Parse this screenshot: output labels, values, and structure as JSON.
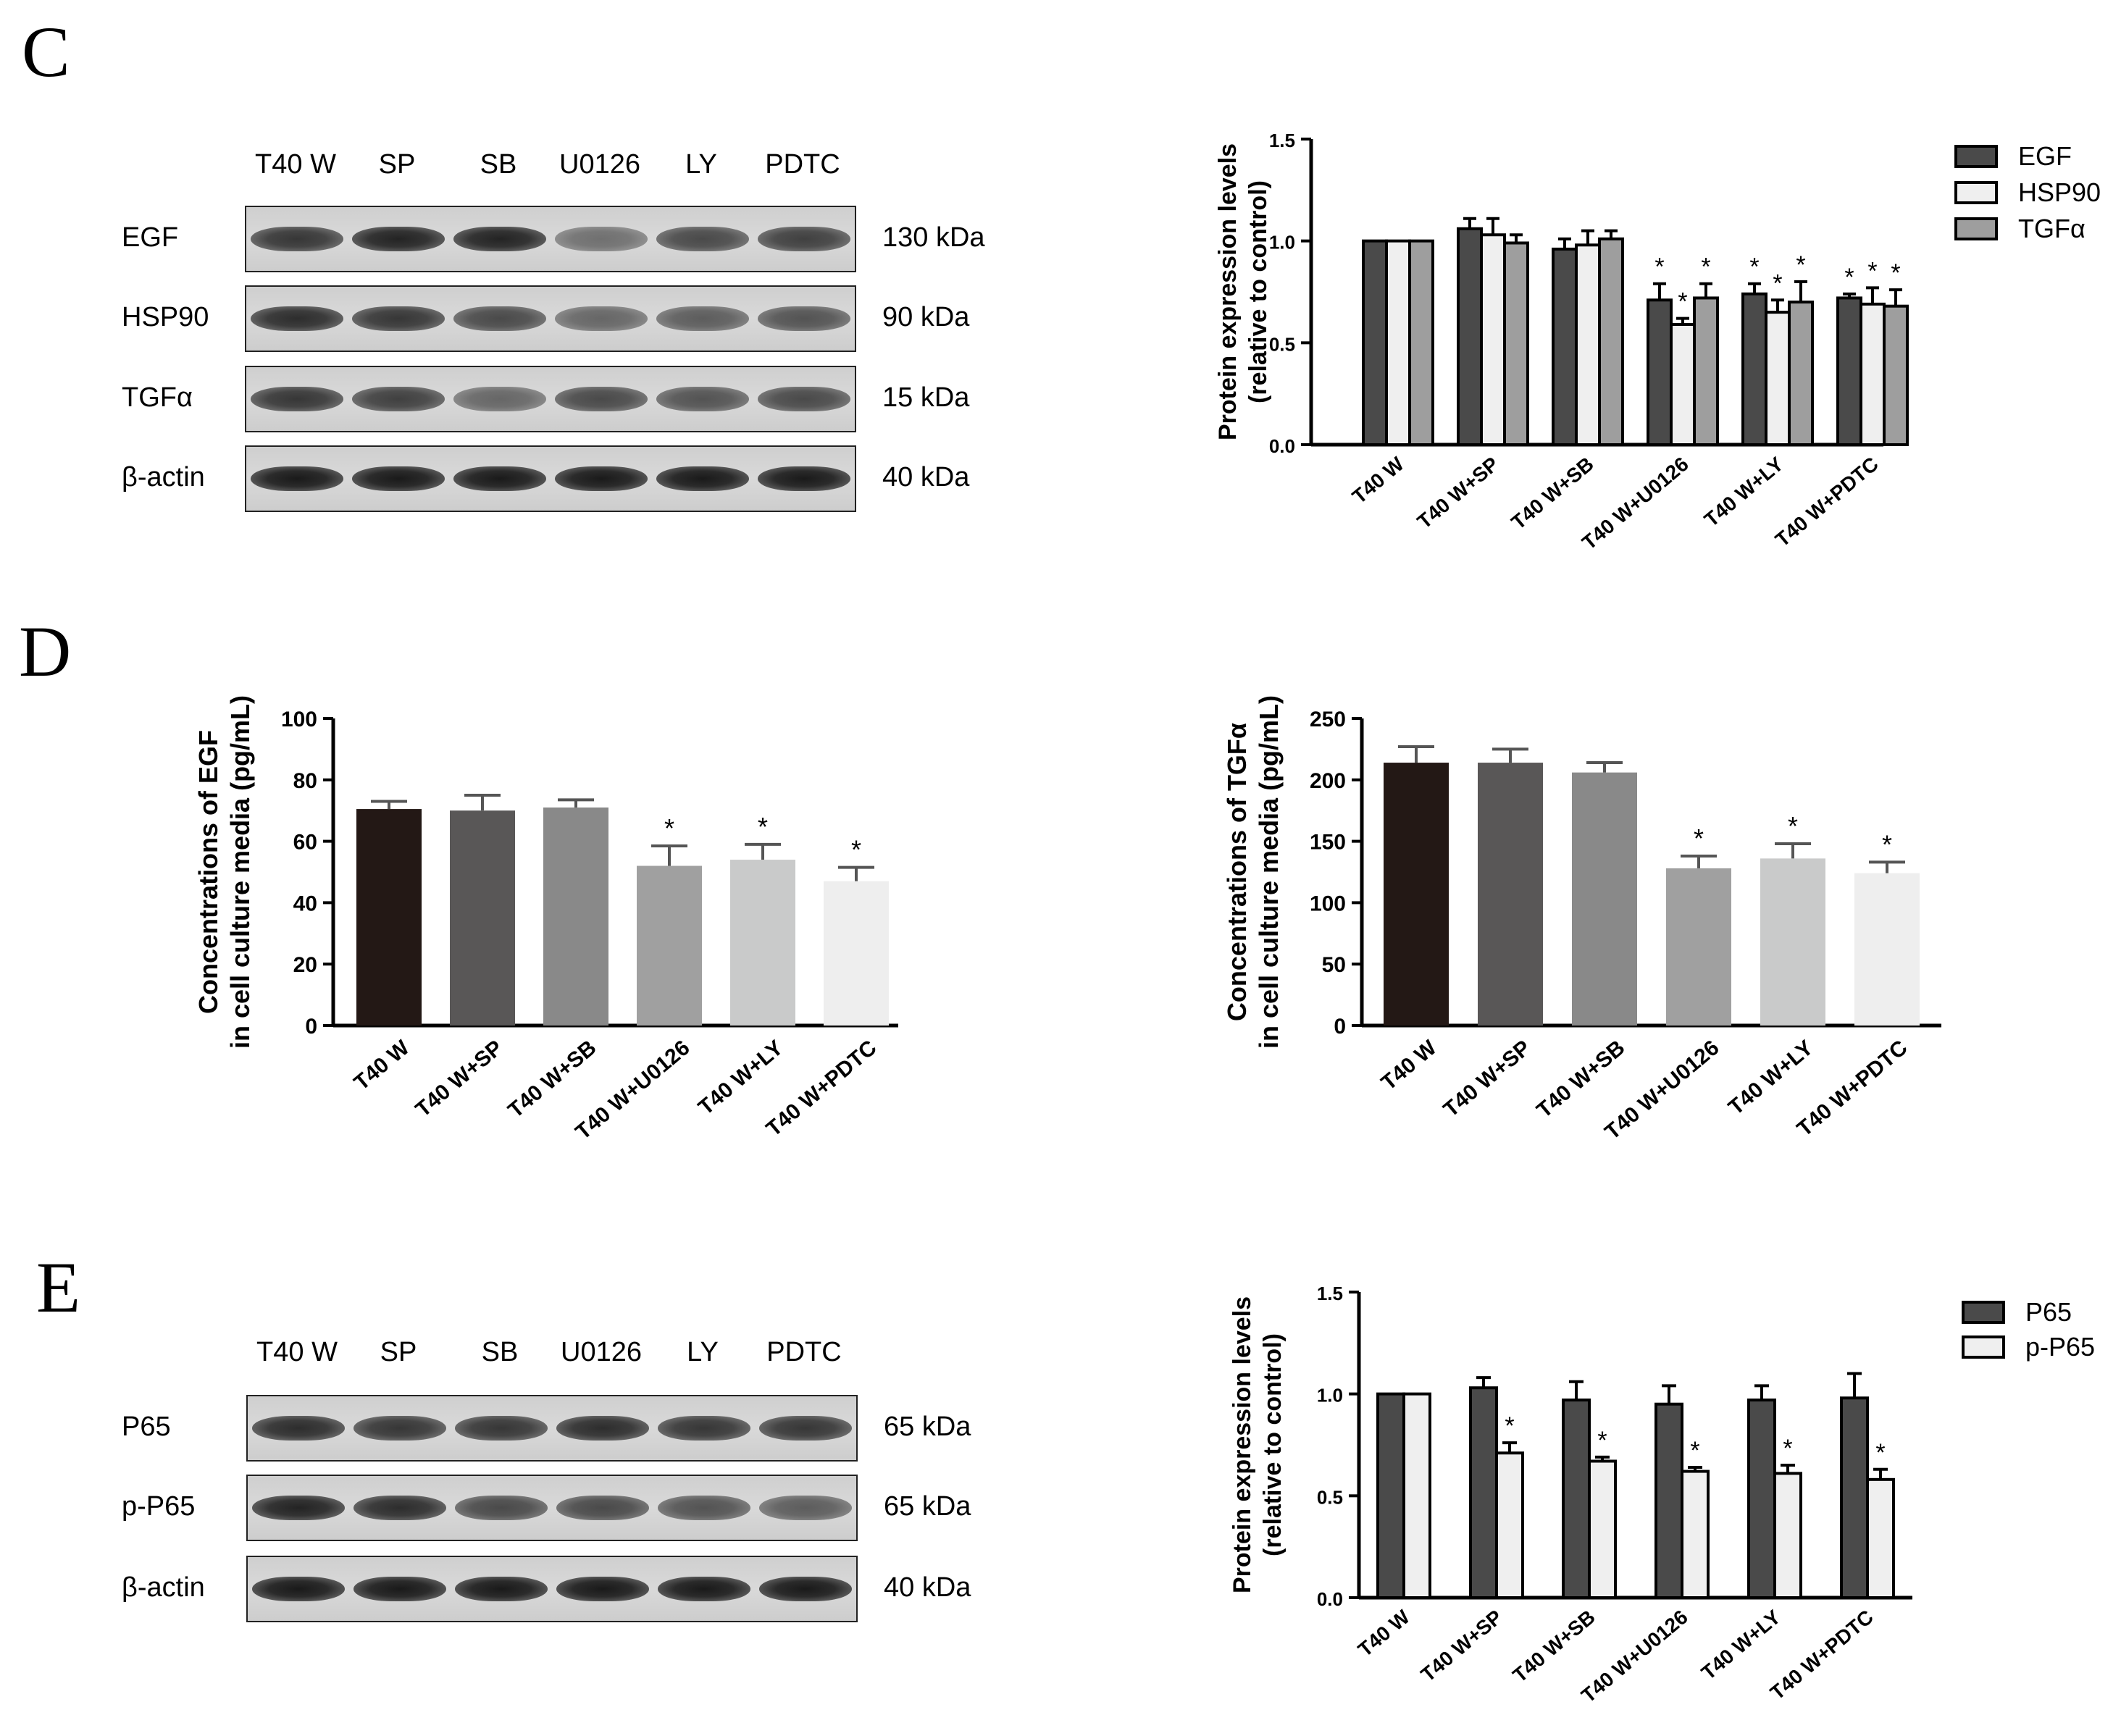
{
  "panels": {
    "C": {
      "letter": "C",
      "blot": {
        "lanes": [
          "T40 W",
          "SP",
          "SB",
          "U0126",
          "LY",
          "PDTC"
        ],
        "rows": [
          {
            "protein": "EGF",
            "size": "130 kDa",
            "intensity": [
              0.85,
              0.95,
              0.95,
              0.55,
              0.75,
              0.8
            ]
          },
          {
            "protein": "HSP90",
            "size": "90 kDa",
            "intensity": [
              0.9,
              0.85,
              0.75,
              0.6,
              0.65,
              0.7
            ]
          },
          {
            "protein": "TGFα",
            "size": "15 kDa",
            "intensity": [
              0.85,
              0.8,
              0.6,
              0.75,
              0.7,
              0.75
            ]
          },
          {
            "protein": "β-actin",
            "size": "40 kDa",
            "intensity": [
              1,
              1,
              1,
              1,
              1,
              1
            ]
          }
        ]
      }
    },
    "D": {
      "letter": "D"
    },
    "E": {
      "letter": "E",
      "blot": {
        "lanes": [
          "T40 W",
          "SP",
          "SB",
          "U0126",
          "LY",
          "PDTC"
        ],
        "rows": [
          {
            "protein": "P65",
            "size": "65 kDa",
            "intensity": [
              0.9,
              0.85,
              0.85,
              0.9,
              0.85,
              0.85
            ]
          },
          {
            "protein": "p-P65",
            "size": "65 kDa",
            "intensity": [
              0.95,
              0.9,
              0.75,
              0.75,
              0.7,
              0.65
            ]
          },
          {
            "protein": "β-actin",
            "size": "40 kDa",
            "intensity": [
              1,
              1,
              1,
              1,
              1,
              1
            ]
          }
        ]
      }
    }
  },
  "chart_data": [
    {
      "id": "C-chart",
      "type": "bar",
      "ylabel": [
        "Protein expression levels",
        "(relative to control)"
      ],
      "ylim": [
        0,
        1.5
      ],
      "yticks": [
        0,
        0.5,
        1.0,
        1.5
      ],
      "tick_labels": [
        "0.0",
        "0.5",
        "1.0",
        "1.5"
      ],
      "categories": [
        "T40 W",
        "T40 W+SP",
        "T40 W+SB",
        "T40 W+U0126",
        "T40 W+LY",
        "T40 W+PDTC"
      ],
      "series": [
        {
          "name": "EGF",
          "color": "#4a4a4a",
          "values": [
            1.0,
            1.06,
            0.96,
            0.71,
            0.74,
            0.72
          ],
          "errors": [
            0.0,
            0.05,
            0.05,
            0.08,
            0.05,
            0.02
          ],
          "significant": [
            false,
            false,
            false,
            true,
            true,
            true
          ]
        },
        {
          "name": "HSP90",
          "color": "#efefef",
          "values": [
            1.0,
            1.03,
            0.98,
            0.59,
            0.65,
            0.69
          ],
          "errors": [
            0.0,
            0.08,
            0.07,
            0.03,
            0.06,
            0.08
          ],
          "significant": [
            false,
            false,
            false,
            true,
            true,
            true
          ]
        },
        {
          "name": "TGFα",
          "color": "#9e9e9e",
          "values": [
            1.0,
            0.99,
            1.01,
            0.72,
            0.7,
            0.68
          ],
          "errors": [
            0.0,
            0.04,
            0.04,
            0.07,
            0.1,
            0.08
          ],
          "significant": [
            false,
            false,
            false,
            true,
            true,
            true
          ]
        }
      ],
      "legend": "right"
    },
    {
      "id": "D-left",
      "type": "bar",
      "ylabel": [
        "Concentrations of EGF",
        "in cell culture media (pg/mL)"
      ],
      "ylim": [
        0,
        100
      ],
      "yticks": [
        0,
        20,
        40,
        60,
        80,
        100
      ],
      "tick_labels": [
        "0",
        "20",
        "40",
        "60",
        "80",
        "100"
      ],
      "categories": [
        "T40 W",
        "T40 W+SP",
        "T40 W+SB",
        "T40 W+U0126",
        "T40 W+LY",
        "T40 W+PDTC"
      ],
      "values": [
        70.5,
        70,
        71,
        52,
        54,
        47
      ],
      "errors": [
        2.5,
        5,
        2.5,
        6.5,
        5,
        4.5
      ],
      "colors": [
        "#231815",
        "#595757",
        "#898989",
        "#a0a0a0",
        "#c9caca",
        "#eeeeee"
      ],
      "significant": [
        false,
        false,
        false,
        true,
        true,
        true
      ]
    },
    {
      "id": "D-right",
      "type": "bar",
      "ylabel": [
        "Concentrations of TGFα",
        "in cell culture media (pg/mL)"
      ],
      "ylim": [
        0,
        250
      ],
      "yticks": [
        0,
        50,
        100,
        150,
        200,
        250
      ],
      "tick_labels": [
        "0",
        "50",
        "100",
        "150",
        "200",
        "250"
      ],
      "categories": [
        "T40 W",
        "T40 W+SP",
        "T40 W+SB",
        "T40 W+U0126",
        "T40 W+LY",
        "T40 W+PDTC"
      ],
      "values": [
        214,
        214,
        206,
        128,
        136,
        124
      ],
      "errors": [
        13,
        11,
        8,
        10,
        12,
        9
      ],
      "colors": [
        "#231815",
        "#595757",
        "#898989",
        "#a0a0a0",
        "#c9caca",
        "#eeeeee"
      ],
      "significant": [
        false,
        false,
        false,
        true,
        true,
        true
      ]
    },
    {
      "id": "E-chart",
      "type": "bar",
      "ylabel": [
        "Protein expression levels",
        "(relative to control)"
      ],
      "ylim": [
        0,
        1.5
      ],
      "yticks": [
        0,
        0.5,
        1.0,
        1.5
      ],
      "tick_labels": [
        "0.0",
        "0.5",
        "1.0",
        "1.5"
      ],
      "categories": [
        "T40 W",
        "T40 W+SP",
        "T40 W+SB",
        "T40 W+U0126",
        "T40 W+LY",
        "T40 W+PDTC"
      ],
      "series": [
        {
          "name": "P65",
          "color": "#4a4a4a",
          "values": [
            1.0,
            1.03,
            0.97,
            0.95,
            0.97,
            0.98
          ],
          "errors": [
            0.0,
            0.05,
            0.09,
            0.09,
            0.07,
            0.12
          ],
          "significant": [
            false,
            false,
            false,
            false,
            false,
            false
          ]
        },
        {
          "name": "p-P65",
          "color": "#efefef",
          "values": [
            1.0,
            0.71,
            0.67,
            0.62,
            0.61,
            0.58
          ],
          "errors": [
            0.0,
            0.05,
            0.02,
            0.02,
            0.04,
            0.05
          ],
          "significant": [
            false,
            true,
            true,
            true,
            true,
            true
          ]
        }
      ],
      "legend": "right"
    }
  ],
  "significance_mark": "*"
}
